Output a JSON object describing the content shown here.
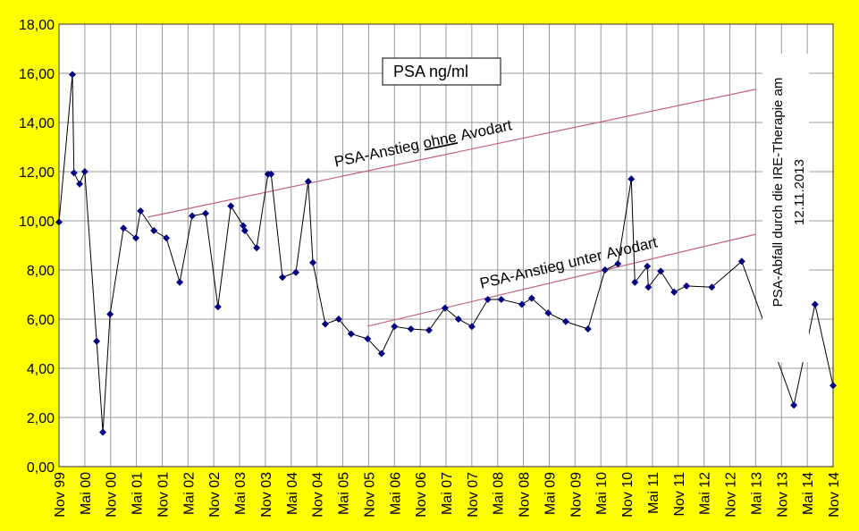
{
  "chart_data": {
    "type": "line",
    "title": "PSA ng/ml",
    "x": [
      1999.83,
      2000.09,
      2000.12,
      2000.23,
      2000.33,
      2000.56,
      2000.68,
      2000.82,
      2001.08,
      2001.32,
      2001.41,
      2001.67,
      2001.91,
      2002.17,
      2002.41,
      2002.67,
      2002.91,
      2003.16,
      2003.4,
      2003.43,
      2003.66,
      2003.88,
      2003.94,
      2004.16,
      2004.42,
      2004.66,
      2004.75,
      2004.99,
      2005.25,
      2005.49,
      2005.81,
      2006.08,
      2006.33,
      2006.65,
      2007.0,
      2007.31,
      2007.57,
      2007.83,
      2008.14,
      2008.4,
      2008.8,
      2008.99,
      2009.31,
      2009.65,
      2010.08,
      2010.41,
      2010.66,
      2010.92,
      2010.99,
      2011.23,
      2011.25,
      2011.49,
      2011.75,
      2011.99,
      2012.48,
      2013.06,
      2014.07,
      2014.48,
      2014.83
    ],
    "series": [
      {
        "name": "PSA",
        "color": "#000080",
        "values": [
          9.95,
          15.95,
          11.95,
          11.5,
          12.0,
          5.1,
          1.4,
          6.2,
          9.7,
          9.3,
          10.4,
          9.6,
          9.3,
          7.5,
          10.2,
          10.3,
          6.5,
          10.6,
          9.8,
          9.6,
          8.9,
          11.9,
          11.9,
          7.7,
          7.9,
          11.6,
          8.3,
          5.8,
          6.0,
          5.4,
          5.2,
          4.6,
          5.7,
          5.6,
          5.55,
          6.45,
          6.0,
          5.7,
          6.8,
          6.8,
          6.6,
          6.85,
          6.25,
          5.9,
          5.6,
          8.0,
          8.25,
          11.7,
          7.5,
          8.15,
          7.3,
          7.95,
          7.1,
          7.35,
          7.3,
          8.35,
          2.5,
          6.6,
          3.3
        ]
      }
    ],
    "xlim": [
      1999.83,
      2014.83
    ],
    "xticks": [
      {
        "value": 1999.83,
        "label": "Nov 99"
      },
      {
        "value": 2000.33,
        "label": "Mai 00"
      },
      {
        "value": 2000.83,
        "label": "Nov 00"
      },
      {
        "value": 2001.33,
        "label": "Mai 01"
      },
      {
        "value": 2001.83,
        "label": "Nov 01"
      },
      {
        "value": 2002.33,
        "label": "Mai 02"
      },
      {
        "value": 2002.83,
        "label": "Nov 02"
      },
      {
        "value": 2003.33,
        "label": "Mai 03"
      },
      {
        "value": 2003.83,
        "label": "Nov 03"
      },
      {
        "value": 2004.33,
        "label": "Mai 04"
      },
      {
        "value": 2004.83,
        "label": "Nov 04"
      },
      {
        "value": 2005.33,
        "label": "Mai 05"
      },
      {
        "value": 2005.83,
        "label": "Nov 05"
      },
      {
        "value": 2006.33,
        "label": "Mai 06"
      },
      {
        "value": 2006.83,
        "label": "Nov 06"
      },
      {
        "value": 2007.33,
        "label": "Mai 07"
      },
      {
        "value": 2007.83,
        "label": "Nov 07"
      },
      {
        "value": 2008.33,
        "label": "Mai 08"
      },
      {
        "value": 2008.83,
        "label": "Nov 08"
      },
      {
        "value": 2009.33,
        "label": "Mai 09"
      },
      {
        "value": 2009.83,
        "label": "Nov 09"
      },
      {
        "value": 2010.33,
        "label": "Mai 10"
      },
      {
        "value": 2010.83,
        "label": "Nov 10"
      },
      {
        "value": 2011.33,
        "label": "Mai 11"
      },
      {
        "value": 2011.83,
        "label": "Nov 11"
      },
      {
        "value": 2012.33,
        "label": "Mai 12"
      },
      {
        "value": 2012.83,
        "label": "Nov 12"
      },
      {
        "value": 2013.33,
        "label": "Mai 13"
      },
      {
        "value": 2013.83,
        "label": "Nov 13"
      },
      {
        "value": 2014.33,
        "label": "Mai 14"
      },
      {
        "value": 2014.83,
        "label": "Nov 14"
      }
    ],
    "ylim": [
      0,
      18
    ],
    "yticks": [
      {
        "value": 0,
        "label": "0,00"
      },
      {
        "value": 2,
        "label": "2,00"
      },
      {
        "value": 4,
        "label": "4,00"
      },
      {
        "value": 6,
        "label": "6,00"
      },
      {
        "value": 8,
        "label": "8,00"
      },
      {
        "value": 10,
        "label": "10,00"
      },
      {
        "value": 12,
        "label": "12,00"
      },
      {
        "value": 14,
        "label": "14,00"
      },
      {
        "value": 16,
        "label": "16,00"
      },
      {
        "value": 18,
        "label": "18,00"
      }
    ],
    "grid": true,
    "trend_lines": [
      {
        "label_parts": [
          "PSA-Anstieg",
          "ohne",
          "Avodart"
        ],
        "x": [
          2001.55,
          2013.33
        ],
        "y": [
          10.15,
          15.35
        ],
        "color": "#c06080"
      },
      {
        "label_parts": [
          "PSA-Anstieg",
          "unter",
          "Avodart"
        ],
        "x": [
          2005.81,
          2013.33
        ],
        "y": [
          5.71,
          9.45
        ],
        "color": "#c06080"
      }
    ],
    "annotation": [
      "PSA-Abfall durch die IRE-Therapie am",
      "12.11.2013"
    ]
  }
}
